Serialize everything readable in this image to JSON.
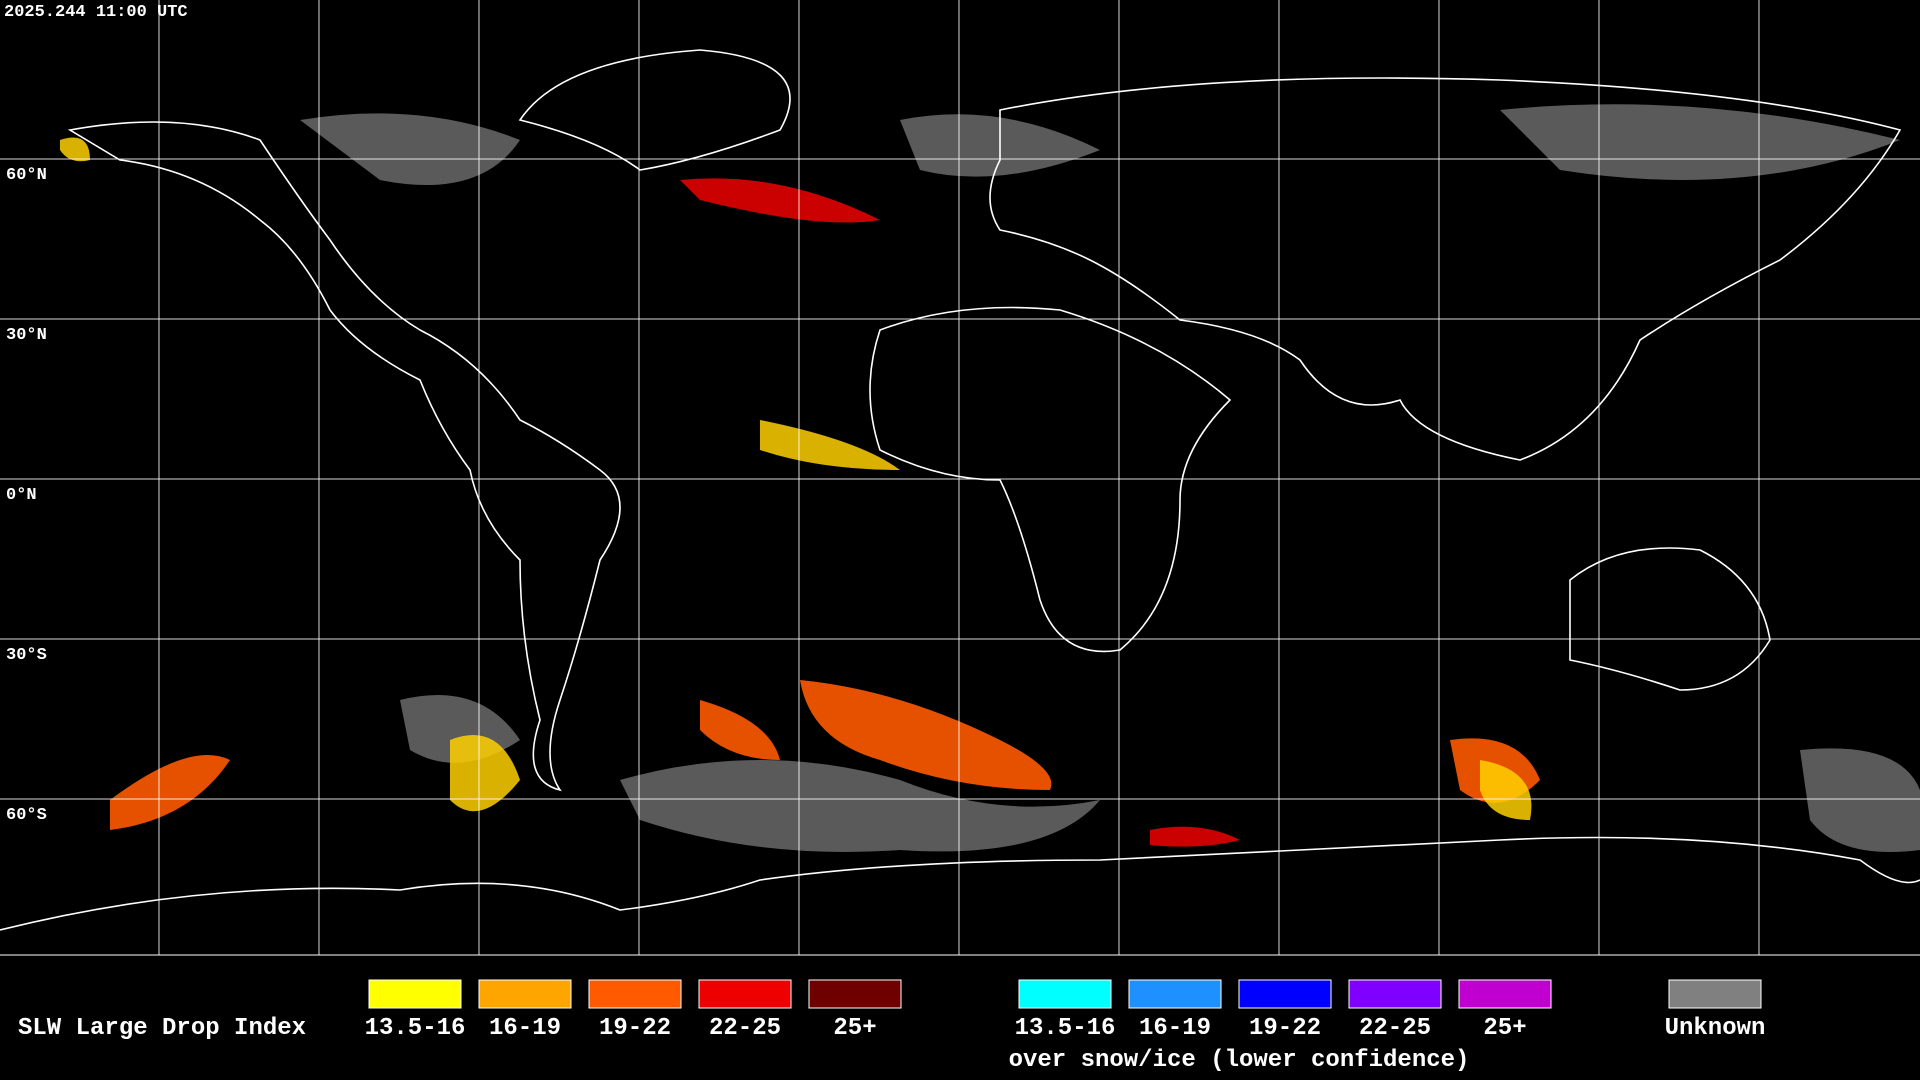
{
  "header": {
    "timestamp": "2025.244 11:00 UTC"
  },
  "map": {
    "lat_labels": [
      "60°N",
      "30°N",
      "0°N",
      "30°S",
      "60°S"
    ]
  },
  "legend": {
    "title": "SLW Large Drop Index",
    "normal": [
      {
        "label": "13.5-16",
        "color": "#ffff00"
      },
      {
        "label": "16-19",
        "color": "#ffa500"
      },
      {
        "label": "19-22",
        "color": "#ff5a00"
      },
      {
        "label": "22-25",
        "color": "#ee0000"
      },
      {
        "label": "25+",
        "color": "#6e0000"
      }
    ],
    "snow_ice": [
      {
        "label": "13.5-16",
        "color": "#00ffff"
      },
      {
        "label": "16-19",
        "color": "#1e90ff"
      },
      {
        "label": "19-22",
        "color": "#0000ff"
      },
      {
        "label": "22-25",
        "color": "#8000ff"
      },
      {
        "label": "25+",
        "color": "#c000d0"
      }
    ],
    "snow_ice_caption": "over snow/ice (lower confidence)",
    "unknown": {
      "label": "Unknown",
      "color": "#808080"
    }
  }
}
